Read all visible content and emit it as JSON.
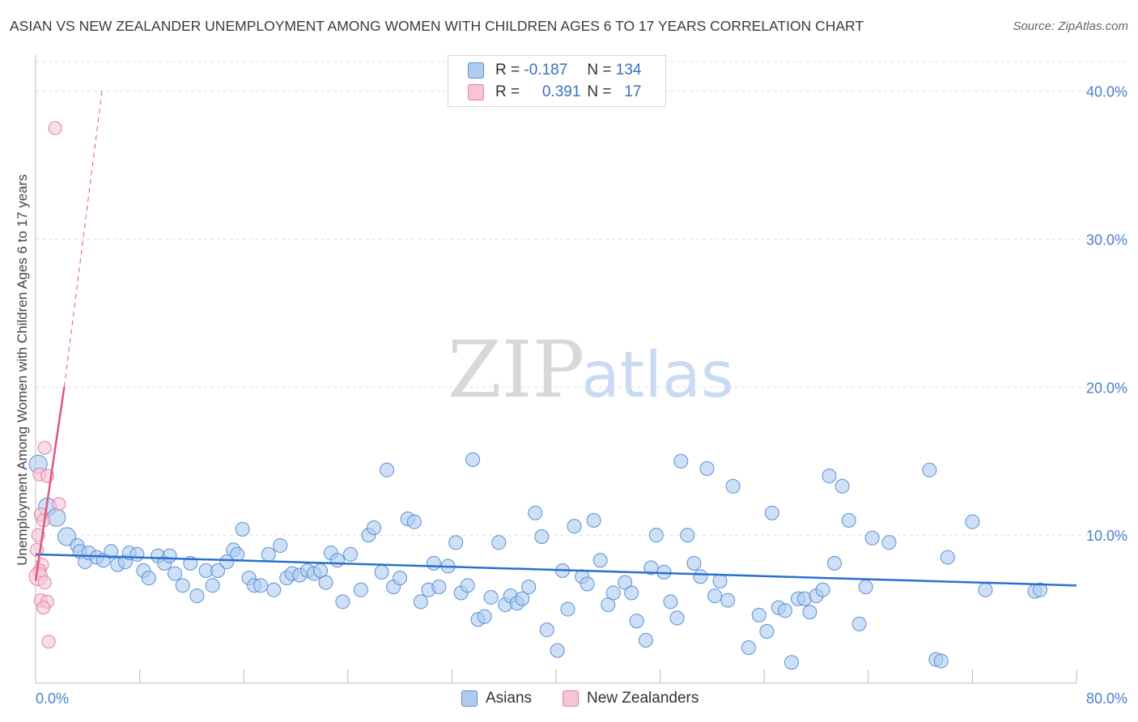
{
  "header": {
    "title": "ASIAN VS NEW ZEALANDER UNEMPLOYMENT AMONG WOMEN WITH CHILDREN AGES 6 TO 17 YEARS CORRELATION CHART",
    "source": "Source: ZipAtlas.com"
  },
  "legend": {
    "rows": [
      {
        "r_label": "R =",
        "r_value": "-0.187",
        "n_label": "N =",
        "n_value": "134"
      },
      {
        "r_label": "R =",
        "r_value": "0.391",
        "n_label": "N =",
        "n_value": "17"
      }
    ]
  },
  "bottom_legend": [
    "Asians",
    "New Zealanders"
  ],
  "watermark": {
    "zip": "ZIP",
    "atlas": "atlas"
  },
  "colors": {
    "asians_fill": "#aecbf0",
    "asians_stroke": "#5b8fd6",
    "asians_line": "#2a6fd0",
    "nz_fill": "#f7c4d3",
    "nz_stroke": "#e6809f",
    "nz_line": "#e05585",
    "tick_text": "#4a7fcf",
    "grid": "#dddddd"
  },
  "chart_data": {
    "type": "scatter",
    "title": "ASIAN VS NEW ZEALANDER UNEMPLOYMENT AMONG WOMEN WITH CHILDREN AGES 6 TO 17 YEARS CORRELATION CHART",
    "xlabel": "",
    "ylabel": "Unemployment Among Women with Children Ages 6 to 17 years",
    "xlim": [
      0,
      80
    ],
    "ylim": [
      0,
      42
    ],
    "x_tick_labels": [
      {
        "value": 0,
        "label": "0.0%"
      },
      {
        "value": 80,
        "label": "80.0%"
      }
    ],
    "y_tick_labels": [
      {
        "value": 10,
        "label": "10.0%"
      },
      {
        "value": 20,
        "label": "20.0%"
      },
      {
        "value": 30,
        "label": "30.0%"
      },
      {
        "value": 40,
        "label": "40.0%"
      }
    ],
    "grid": "horizontal-dashed",
    "legend_position": "top-center",
    "series": [
      {
        "name": "Asians",
        "trend": {
          "x": [
            0,
            80
          ],
          "y": [
            8.7,
            6.6
          ]
        },
        "points": [
          [
            0.2,
            14.8,
            1.3
          ],
          [
            0.9,
            11.9,
            1.3
          ],
          [
            1.6,
            11.2,
            1.3
          ],
          [
            2.4,
            9.9,
            1.3
          ],
          [
            3.2,
            9.3,
            1.0
          ],
          [
            3.4,
            8.9,
            1.0
          ],
          [
            3.8,
            8.2,
            1.0
          ],
          [
            4.1,
            8.8,
            1.0
          ],
          [
            4.7,
            8.5,
            1.0
          ],
          [
            5.2,
            8.3,
            1.0
          ],
          [
            5.8,
            8.9,
            1.0
          ],
          [
            6.3,
            8.0,
            1.0
          ],
          [
            6.9,
            8.2,
            1.0
          ],
          [
            7.2,
            8.8,
            1.0
          ],
          [
            7.8,
            8.7,
            1.0
          ],
          [
            8.3,
            7.6,
            1.0
          ],
          [
            8.7,
            7.1,
            1.0
          ],
          [
            9.4,
            8.6,
            1.0
          ],
          [
            9.9,
            8.1,
            1.0
          ],
          [
            10.3,
            8.6,
            1.0
          ],
          [
            10.7,
            7.4,
            1.0
          ],
          [
            11.3,
            6.6,
            1.0
          ],
          [
            11.9,
            8.1,
            1.0
          ],
          [
            12.4,
            5.9,
            1.0
          ],
          [
            13.1,
            7.6,
            1.0
          ],
          [
            13.6,
            6.6,
            1.0
          ],
          [
            14.0,
            7.6,
            1.0
          ],
          [
            14.7,
            8.2,
            1.0
          ],
          [
            15.2,
            9.0,
            1.0
          ],
          [
            15.5,
            8.7,
            1.0
          ],
          [
            15.9,
            10.4,
            1.0
          ],
          [
            16.4,
            7.1,
            1.0
          ],
          [
            16.8,
            6.6,
            1.0
          ],
          [
            17.3,
            6.6,
            1.0
          ],
          [
            17.9,
            8.7,
            1.0
          ],
          [
            18.3,
            6.3,
            1.0
          ],
          [
            18.8,
            9.3,
            1.0
          ],
          [
            19.3,
            7.1,
            1.0
          ],
          [
            19.7,
            7.4,
            1.0
          ],
          [
            20.3,
            7.3,
            1.0
          ],
          [
            20.9,
            7.6,
            1.0
          ],
          [
            21.4,
            7.4,
            1.0
          ],
          [
            21.9,
            7.6,
            1.0
          ],
          [
            22.3,
            6.8,
            1.0
          ],
          [
            22.7,
            8.8,
            1.0
          ],
          [
            23.2,
            8.3,
            1.0
          ],
          [
            23.6,
            5.5,
            1.0
          ],
          [
            24.2,
            8.7,
            1.0
          ],
          [
            25.0,
            6.3,
            1.0
          ],
          [
            25.6,
            10.0,
            1.0
          ],
          [
            26.0,
            10.5,
            1.0
          ],
          [
            26.6,
            7.5,
            1.0
          ],
          [
            27.0,
            14.4,
            1.0
          ],
          [
            27.5,
            6.5,
            1.0
          ],
          [
            28.0,
            7.1,
            1.0
          ],
          [
            28.6,
            11.1,
            1.0
          ],
          [
            29.1,
            10.9,
            1.0
          ],
          [
            29.6,
            5.5,
            1.0
          ],
          [
            30.2,
            6.3,
            1.0
          ],
          [
            30.6,
            8.1,
            1.0
          ],
          [
            31.0,
            6.5,
            1.0
          ],
          [
            31.7,
            7.9,
            1.0
          ],
          [
            32.3,
            9.5,
            1.0
          ],
          [
            32.7,
            6.1,
            1.0
          ],
          [
            33.2,
            6.6,
            1.0
          ],
          [
            33.6,
            15.1,
            1.0
          ],
          [
            34.0,
            4.3,
            1.0
          ],
          [
            34.5,
            4.5,
            1.0
          ],
          [
            35.0,
            5.8,
            1.0
          ],
          [
            35.6,
            9.5,
            1.0
          ],
          [
            36.1,
            5.3,
            1.0
          ],
          [
            36.5,
            5.9,
            1.0
          ],
          [
            37.0,
            5.4,
            1.0
          ],
          [
            37.4,
            5.7,
            1.0
          ],
          [
            37.9,
            6.5,
            1.0
          ],
          [
            38.4,
            11.5,
            1.0
          ],
          [
            38.9,
            9.9,
            1.0
          ],
          [
            39.3,
            3.6,
            1.0
          ],
          [
            40.1,
            2.2,
            1.0
          ],
          [
            40.5,
            7.6,
            1.0
          ],
          [
            40.9,
            5.0,
            1.0
          ],
          [
            41.4,
            10.6,
            1.0
          ],
          [
            42.0,
            7.2,
            1.0
          ],
          [
            42.4,
            6.7,
            1.0
          ],
          [
            42.9,
            11.0,
            1.0
          ],
          [
            43.4,
            8.3,
            1.0
          ],
          [
            44.0,
            5.3,
            1.0
          ],
          [
            44.4,
            6.1,
            1.0
          ],
          [
            45.3,
            6.8,
            1.0
          ],
          [
            45.8,
            6.1,
            1.0
          ],
          [
            46.2,
            4.2,
            1.0
          ],
          [
            46.9,
            2.9,
            1.0
          ],
          [
            47.3,
            7.8,
            1.0
          ],
          [
            47.7,
            10.0,
            1.0
          ],
          [
            48.3,
            7.5,
            1.0
          ],
          [
            48.8,
            5.5,
            1.0
          ],
          [
            49.3,
            4.4,
            1.0
          ],
          [
            49.6,
            15.0,
            1.0
          ],
          [
            50.1,
            10.0,
            1.0
          ],
          [
            50.6,
            8.1,
            1.0
          ],
          [
            51.1,
            7.2,
            1.0
          ],
          [
            51.6,
            14.5,
            1.0
          ],
          [
            52.2,
            5.9,
            1.0
          ],
          [
            52.6,
            6.9,
            1.0
          ],
          [
            53.2,
            5.6,
            1.0
          ],
          [
            53.6,
            13.3,
            1.0
          ],
          [
            54.8,
            2.4,
            1.0
          ],
          [
            55.6,
            4.6,
            1.0
          ],
          [
            56.2,
            3.5,
            1.0
          ],
          [
            56.6,
            11.5,
            1.0
          ],
          [
            57.1,
            5.1,
            1.0
          ],
          [
            57.6,
            4.9,
            1.0
          ],
          [
            58.1,
            1.4,
            1.0
          ],
          [
            58.6,
            5.7,
            1.0
          ],
          [
            59.1,
            5.7,
            1.0
          ],
          [
            59.5,
            4.8,
            1.0
          ],
          [
            60.0,
            5.9,
            1.0
          ],
          [
            60.5,
            6.3,
            1.0
          ],
          [
            61.0,
            14.0,
            1.0
          ],
          [
            61.4,
            8.1,
            1.0
          ],
          [
            62.0,
            13.3,
            1.0
          ],
          [
            62.5,
            11.0,
            1.0
          ],
          [
            63.3,
            4.0,
            1.0
          ],
          [
            63.8,
            6.5,
            1.0
          ],
          [
            64.3,
            9.8,
            1.0
          ],
          [
            65.6,
            9.5,
            1.0
          ],
          [
            68.7,
            14.4,
            1.0
          ],
          [
            69.2,
            1.6,
            1.0
          ],
          [
            69.6,
            1.5,
            1.0
          ],
          [
            70.1,
            8.5,
            1.0
          ],
          [
            72.0,
            10.9,
            1.0
          ],
          [
            73.0,
            6.3,
            1.0
          ],
          [
            76.8,
            6.2,
            1.0
          ],
          [
            77.2,
            6.3,
            1.0
          ]
        ]
      },
      {
        "name": "New Zealanders",
        "trend": {
          "x": [
            0,
            2.2
          ],
          "y": [
            6.9,
            20
          ],
          "dashed_to": [
            5.1,
            40
          ]
        },
        "points": [
          [
            1.5,
            37.5,
            1.0
          ],
          [
            0.7,
            15.9,
            1.0
          ],
          [
            0.3,
            14.1,
            1.0
          ],
          [
            0.9,
            14.0,
            1.0
          ],
          [
            1.8,
            12.1,
            1.0
          ],
          [
            0.4,
            11.4,
            1.0
          ],
          [
            0.6,
            11.0,
            1.0
          ],
          [
            0.2,
            10.0,
            1.0
          ],
          [
            0.1,
            9.0,
            1.0
          ],
          [
            0.5,
            8.0,
            1.0
          ],
          [
            0.3,
            7.6,
            1.0
          ],
          [
            0.2,
            7.2,
            1.4
          ],
          [
            0.7,
            6.8,
            1.0
          ],
          [
            0.4,
            5.6,
            1.0
          ],
          [
            0.9,
            5.5,
            1.0
          ],
          [
            0.6,
            5.1,
            1.0
          ],
          [
            1.0,
            2.8,
            1.0
          ]
        ]
      }
    ]
  }
}
